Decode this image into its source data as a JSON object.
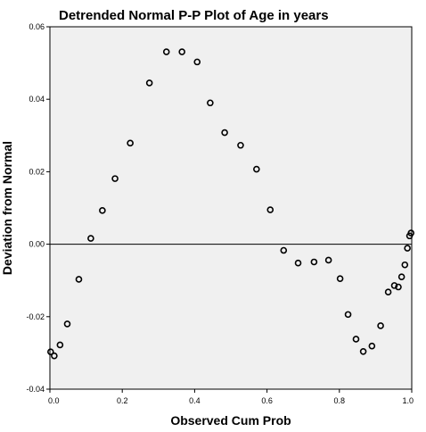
{
  "chart_data": {
    "type": "scatter",
    "title": "Detrended Normal P-P Plot of Age in years",
    "xlabel": "Observed Cum Prob",
    "ylabel": "Deviation from Normal",
    "xlim": [
      0.0,
      1.0
    ],
    "ylim": [
      -0.04,
      0.06
    ],
    "x_ticks": [
      "0.0",
      "0.2",
      "0.4",
      "0.6",
      "0.8",
      "1.0"
    ],
    "x_tick_values": [
      0.0,
      0.2,
      0.4,
      0.6,
      0.8,
      1.0
    ],
    "y_ticks": [
      "0.06",
      "0.04",
      "0.02",
      "0.00",
      "-0.02",
      "-0.04"
    ],
    "y_tick_values": [
      0.06,
      0.04,
      0.02,
      0.0,
      -0.02,
      -0.04
    ],
    "reference_line_y": 0.0,
    "plot_background": "#f0f0f0",
    "marker_color": "#000000",
    "points": [
      {
        "x": 0.002,
        "y": -0.0297
      },
      {
        "x": 0.012,
        "y": -0.0308
      },
      {
        "x": 0.028,
        "y": -0.0278
      },
      {
        "x": 0.048,
        "y": -0.022
      },
      {
        "x": 0.08,
        "y": -0.0097
      },
      {
        "x": 0.113,
        "y": 0.0016
      },
      {
        "x": 0.145,
        "y": 0.0093
      },
      {
        "x": 0.18,
        "y": 0.0181
      },
      {
        "x": 0.222,
        "y": 0.0279
      },
      {
        "x": 0.275,
        "y": 0.0445
      },
      {
        "x": 0.322,
        "y": 0.0531
      },
      {
        "x": 0.365,
        "y": 0.0531
      },
      {
        "x": 0.407,
        "y": 0.0503
      },
      {
        "x": 0.443,
        "y": 0.039
      },
      {
        "x": 0.483,
        "y": 0.0308
      },
      {
        "x": 0.527,
        "y": 0.0273
      },
      {
        "x": 0.571,
        "y": 0.0207
      },
      {
        "x": 0.609,
        "y": 0.0095
      },
      {
        "x": 0.646,
        "y": -0.0017
      },
      {
        "x": 0.686,
        "y": -0.0052
      },
      {
        "x": 0.73,
        "y": -0.0049
      },
      {
        "x": 0.77,
        "y": -0.0044
      },
      {
        "x": 0.802,
        "y": -0.0095
      },
      {
        "x": 0.824,
        "y": -0.0194
      },
      {
        "x": 0.846,
        "y": -0.0262
      },
      {
        "x": 0.866,
        "y": -0.0296
      },
      {
        "x": 0.89,
        "y": -0.0281
      },
      {
        "x": 0.914,
        "y": -0.0225
      },
      {
        "x": 0.935,
        "y": -0.0132
      },
      {
        "x": 0.952,
        "y": -0.0114
      },
      {
        "x": 0.963,
        "y": -0.0118
      },
      {
        "x": 0.972,
        "y": -0.009
      },
      {
        "x": 0.981,
        "y": -0.0057
      },
      {
        "x": 0.988,
        "y": -0.0011
      },
      {
        "x": 0.994,
        "y": 0.0023
      },
      {
        "x": 0.998,
        "y": 0.0031
      }
    ]
  }
}
